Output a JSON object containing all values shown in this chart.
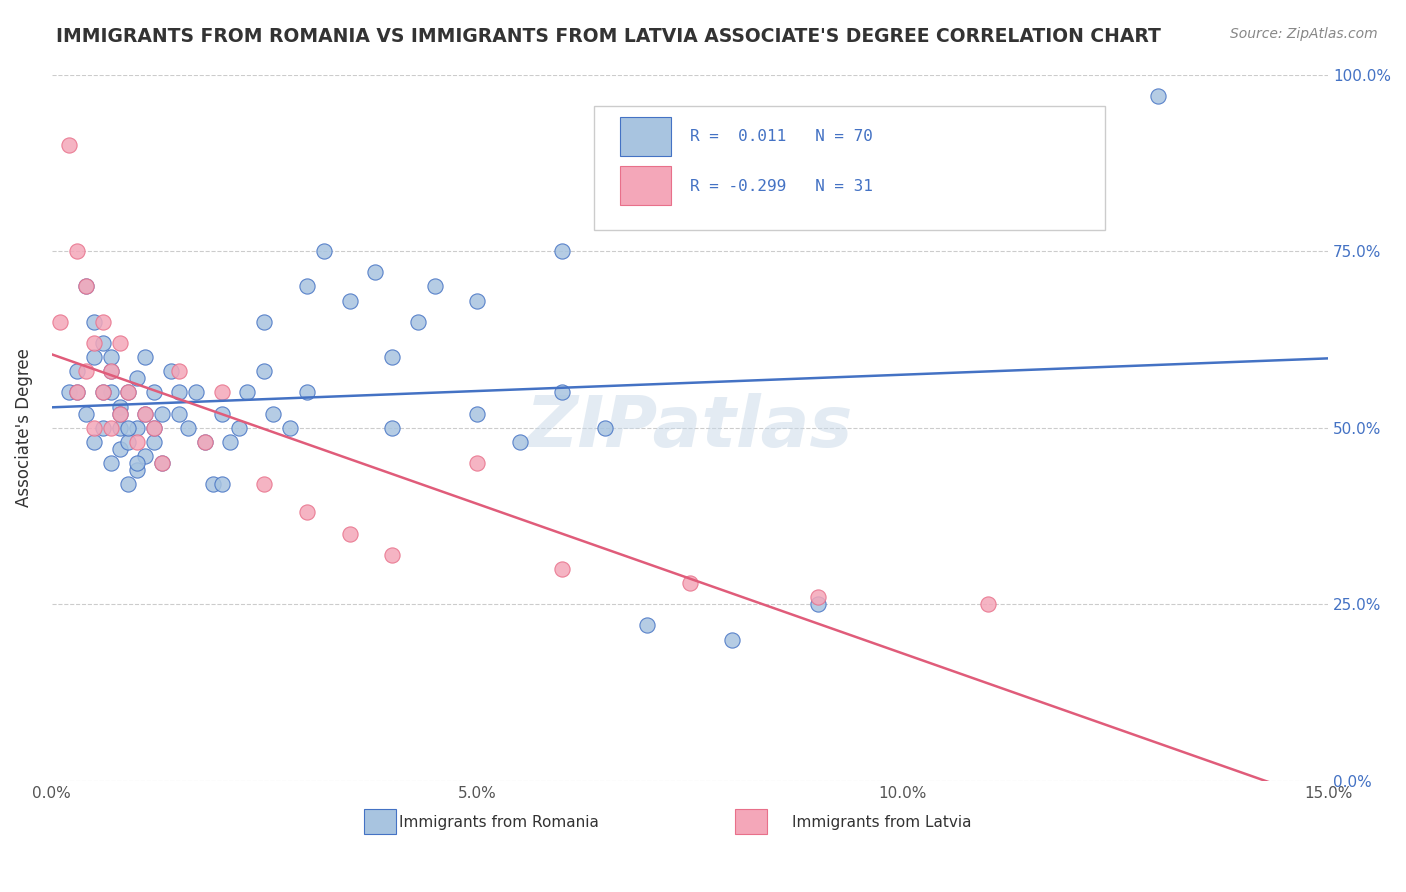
{
  "title": "IMMIGRANTS FROM ROMANIA VS IMMIGRANTS FROM LATVIA ASSOCIATE'S DEGREE CORRELATION CHART",
  "source": "Source: ZipAtlas.com",
  "xlabel_bottom": "",
  "ylabel": "Associate's Degree",
  "legend_label1": "Immigrants from Romania",
  "legend_label2": "Immigrants from Latvia",
  "R1": 0.011,
  "N1": 70,
  "R2": -0.299,
  "N2": 31,
  "color1": "#a8c4e0",
  "color2": "#f4a7b9",
  "line_color1": "#4472c4",
  "line_color2": "#e05c7a",
  "xlim": [
    0,
    0.15
  ],
  "ylim": [
    0,
    1.0
  ],
  "xticks": [
    0.0,
    0.05,
    0.1,
    0.15
  ],
  "xticklabels": [
    "0.0%",
    "5.0%",
    "10.0%",
    "15.0%"
  ],
  "yticks": [
    0.0,
    0.25,
    0.5,
    0.75,
    1.0
  ],
  "yticklabels": [
    "0.0%",
    "25.0%",
    "50.0%",
    "75.0%",
    "100.0%"
  ],
  "romania_x": [
    0.002,
    0.003,
    0.004,
    0.005,
    0.005,
    0.006,
    0.006,
    0.007,
    0.007,
    0.007,
    0.008,
    0.008,
    0.008,
    0.009,
    0.009,
    0.009,
    0.01,
    0.01,
    0.01,
    0.011,
    0.011,
    0.011,
    0.012,
    0.012,
    0.013,
    0.013,
    0.014,
    0.015,
    0.016,
    0.017,
    0.018,
    0.019,
    0.02,
    0.021,
    0.022,
    0.023,
    0.025,
    0.026,
    0.028,
    0.03,
    0.032,
    0.035,
    0.038,
    0.04,
    0.043,
    0.045,
    0.05,
    0.055,
    0.06,
    0.065,
    0.003,
    0.004,
    0.005,
    0.006,
    0.007,
    0.008,
    0.009,
    0.01,
    0.012,
    0.015,
    0.02,
    0.025,
    0.03,
    0.04,
    0.05,
    0.06,
    0.07,
    0.08,
    0.09,
    0.13
  ],
  "romania_y": [
    0.55,
    0.58,
    0.52,
    0.6,
    0.48,
    0.62,
    0.5,
    0.55,
    0.45,
    0.58,
    0.5,
    0.53,
    0.47,
    0.55,
    0.48,
    0.42,
    0.57,
    0.5,
    0.44,
    0.6,
    0.52,
    0.46,
    0.55,
    0.48,
    0.52,
    0.45,
    0.58,
    0.52,
    0.5,
    0.55,
    0.48,
    0.42,
    0.52,
    0.48,
    0.5,
    0.55,
    0.58,
    0.52,
    0.5,
    0.55,
    0.75,
    0.68,
    0.72,
    0.6,
    0.65,
    0.7,
    0.52,
    0.48,
    0.55,
    0.5,
    0.55,
    0.7,
    0.65,
    0.55,
    0.6,
    0.52,
    0.5,
    0.45,
    0.5,
    0.55,
    0.42,
    0.65,
    0.7,
    0.5,
    0.68,
    0.75,
    0.22,
    0.2,
    0.25,
    0.97
  ],
  "latvia_x": [
    0.001,
    0.002,
    0.003,
    0.003,
    0.004,
    0.004,
    0.005,
    0.005,
    0.006,
    0.006,
    0.007,
    0.007,
    0.008,
    0.008,
    0.009,
    0.01,
    0.011,
    0.012,
    0.013,
    0.015,
    0.018,
    0.02,
    0.025,
    0.03,
    0.035,
    0.04,
    0.05,
    0.06,
    0.075,
    0.09,
    0.11
  ],
  "latvia_y": [
    0.65,
    0.9,
    0.75,
    0.55,
    0.7,
    0.58,
    0.62,
    0.5,
    0.65,
    0.55,
    0.58,
    0.5,
    0.52,
    0.62,
    0.55,
    0.48,
    0.52,
    0.5,
    0.45,
    0.58,
    0.48,
    0.55,
    0.42,
    0.38,
    0.35,
    0.32,
    0.45,
    0.3,
    0.28,
    0.26,
    0.25
  ],
  "watermark": "ZIPatlas",
  "background_color": "#ffffff",
  "grid_color": "#cccccc"
}
